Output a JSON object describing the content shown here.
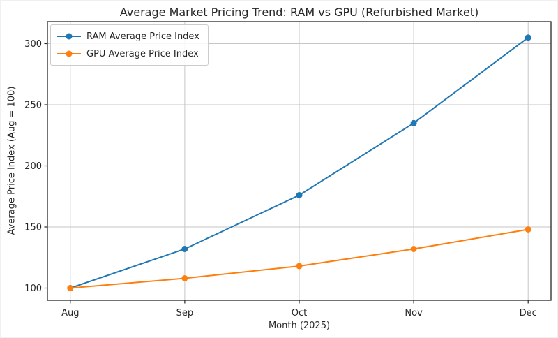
{
  "chart_data": {
    "type": "line",
    "title": "Average Market Pricing Trend: RAM vs GPU (Refurbished Market)",
    "xlabel": "Month (2025)",
    "ylabel": "Average Price Index (Aug = 100)",
    "categories": [
      "Aug",
      "Sep",
      "Oct",
      "Nov",
      "Dec"
    ],
    "series": [
      {
        "name": "RAM Average Price Index",
        "values": [
          100,
          132,
          176,
          235,
          305
        ],
        "color": "#1f77b4",
        "marker": "circle"
      },
      {
        "name": "GPU Average Price Index",
        "values": [
          100,
          108,
          118,
          132,
          148
        ],
        "color": "#ff7f0e",
        "marker": "circle"
      }
    ],
    "yticks": [
      100,
      150,
      200,
      250,
      300
    ],
    "ylim": [
      90,
      318
    ],
    "xlim": [
      -0.2,
      4.2
    ],
    "grid": true,
    "grid_color": "#c6c6c6",
    "axis_color": "#262626",
    "background": "#ffffff",
    "legend_position": "upper left"
  }
}
